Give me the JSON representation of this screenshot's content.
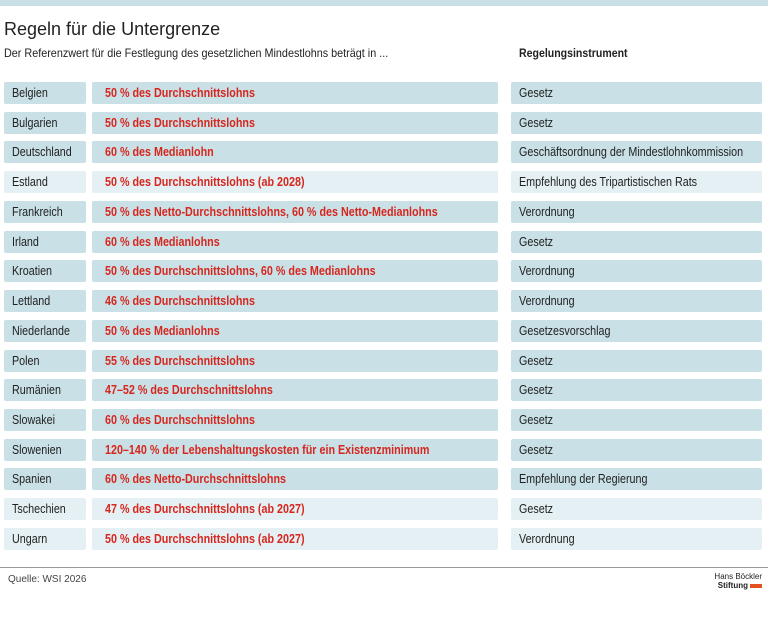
{
  "header": {
    "title": "Regeln für die Untergrenze",
    "subtitle": "Der Referenzwert für die Festlegung des gesetzlichen Mindestlohns beträgt in ...",
    "column_header": "Regelungsinstrument"
  },
  "table": {
    "rows": [
      {
        "country": "Belgien",
        "reference": "50 % des Durchschnittslohns",
        "instrument": "Gesetz",
        "color": "#c8e0e6"
      },
      {
        "country": "Bulgarien",
        "reference": "50 % des Durchschnittslohns",
        "instrument": "Gesetz",
        "color": "#c8e0e6"
      },
      {
        "country": "Deutschland",
        "reference": "60 % des Medianlohn",
        "instrument": "Geschäftsordnung der Mindestlohnkommission",
        "color": "#c8e0e6"
      },
      {
        "country": "Estland",
        "reference": "50 % des Durchschnittslohns (ab 2028)",
        "instrument": "Empfehlung des Tripartistischen Rats",
        "color": "#e4f0f3"
      },
      {
        "country": "Frankreich",
        "reference": "50 % des Netto-Durchschnittslohns, 60 % des Netto-Medianlohns",
        "instrument": "Verordnung",
        "color": "#c8e0e6"
      },
      {
        "country": "Irland",
        "reference": "60 % des Medianlohns",
        "instrument": "Gesetz",
        "color": "#c8e0e6"
      },
      {
        "country": "Kroatien",
        "reference": "50 % des Durchschnittslohns, 60 % des Medianlohns",
        "instrument": "Verordnung",
        "color": "#c8e0e6"
      },
      {
        "country": "Lettland",
        "reference": "46 % des Durchschnittslohns",
        "instrument": "Verordnung",
        "color": "#c8e0e6"
      },
      {
        "country": "Niederlande",
        "reference": "50 % des Medianlohns",
        "instrument": "Gesetzesvorschlag",
        "color": "#c8e0e6"
      },
      {
        "country": "Polen",
        "reference": "55 % des Durchschnittslohns",
        "instrument": "Gesetz",
        "color": "#c8e0e6"
      },
      {
        "country": "Rumänien",
        "reference": "47–52 % des Durchschnittslohns",
        "instrument": "Gesetz",
        "color": "#c8e0e6"
      },
      {
        "country": "Slowakei",
        "reference": "60 % des Durchschnittslohns",
        "instrument": "Gesetz",
        "color": "#c8e0e6"
      },
      {
        "country": "Slowenien",
        "reference": "120–140 % der Lebenshaltungskosten für ein Existenzminimum",
        "instrument": "Gesetz",
        "color": "#c8e0e6"
      },
      {
        "country": "Spanien",
        "reference": "60 % des Netto-Durchschnittslohns",
        "instrument": "Empfehlung der Regierung",
        "color": "#c8e0e6"
      },
      {
        "country": "Tschechien",
        "reference": "47 % des Durchschnittslohns (ab 2027)",
        "instrument": "Gesetz",
        "color": "#e4f0f3"
      },
      {
        "country": "Ungarn",
        "reference": "50 % des Durchschnittslohns (ab 2027)",
        "instrument": "Verordnung",
        "color": "#e4f0f3"
      }
    ]
  },
  "footer": {
    "source": "Quelle: WSI 2026",
    "logo_line1": "Hans Böckler",
    "logo_line2": "Stiftung"
  }
}
